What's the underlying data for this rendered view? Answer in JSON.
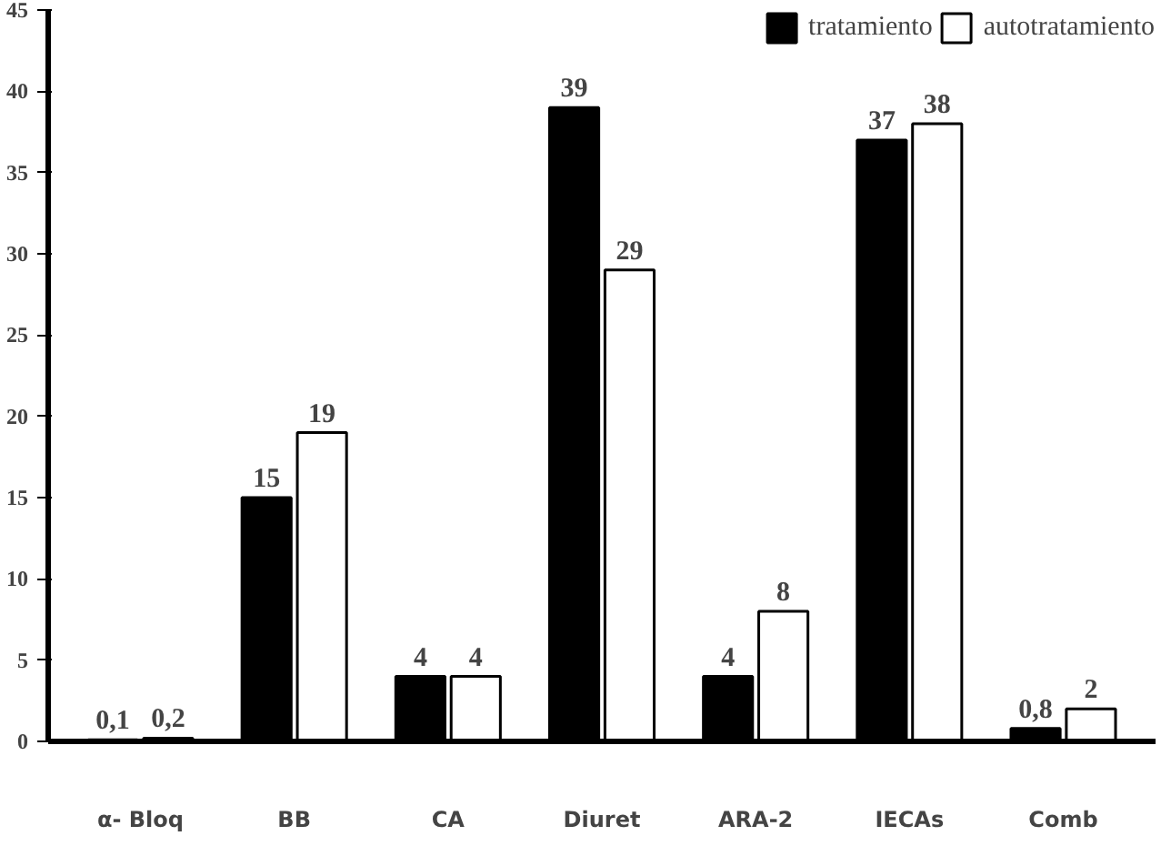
{
  "chart_data": {
    "type": "bar",
    "categories": [
      "α- Bloq",
      "BB",
      "CA",
      "Diuret",
      "ARA-2",
      "IECAs",
      "Comb"
    ],
    "series": [
      {
        "name": "tratamiento",
        "color": "#000000",
        "values": [
          0.1,
          15,
          4,
          39,
          4,
          37,
          0.8
        ],
        "value_labels": [
          "0,1",
          "15",
          "4",
          "39",
          "4",
          "37",
          "0,8"
        ]
      },
      {
        "name": "autotratamiento",
        "color": "#ffffff",
        "values": [
          0.2,
          19,
          4,
          29,
          8,
          38,
          2
        ],
        "value_labels": [
          "0,2",
          "19",
          "4",
          "29",
          "8",
          "38",
          "2"
        ]
      }
    ],
    "ylim": [
      0,
      45
    ],
    "yticks": [
      0,
      5,
      10,
      15,
      20,
      25,
      30,
      35,
      40,
      45
    ],
    "grid": false,
    "legend": "top right"
  }
}
